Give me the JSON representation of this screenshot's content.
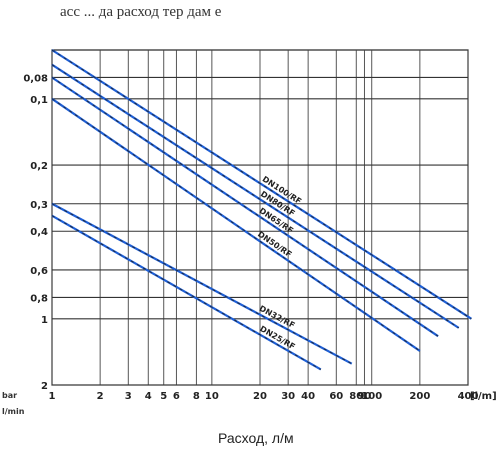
{
  "chart_data": {
    "type": "line",
    "title": "асс ... да расход   тер  дам е",
    "xlabel": "Расход,  л/м",
    "x_scale": "log",
    "y_scale": "log",
    "y_reversed": true,
    "x_ticks": [
      "1",
      "2",
      "3",
      "4",
      "5",
      "6",
      "8",
      "10",
      "20",
      "30",
      "40",
      "60",
      "80",
      "90",
      "100",
      "200",
      "400"
    ],
    "x_unit": "[l/m]",
    "y_ticks": [
      "0,08",
      "0,1",
      "0,2",
      "0,3",
      "0,4",
      "0,6",
      "0,8",
      "1",
      "2"
    ],
    "y_units": [
      "bar",
      "l/min"
    ],
    "xlim": [
      1,
      400
    ],
    "ylim": [
      0.06,
      2
    ],
    "grid": true,
    "series": [
      {
        "name": "DN100/RF",
        "x": [
          1,
          420
        ],
        "y": [
          0.06,
          1.0
        ]
      },
      {
        "name": "DN80/RF",
        "x": [
          1,
          350
        ],
        "y": [
          0.07,
          1.1
        ]
      },
      {
        "name": "DN65/RF",
        "x": [
          1,
          260
        ],
        "y": [
          0.08,
          1.2
        ]
      },
      {
        "name": "DN50/RF",
        "x": [
          1,
          200
        ],
        "y": [
          0.1,
          1.4
        ]
      },
      {
        "name": "DN32/RF",
        "x": [
          1,
          75
        ],
        "y": [
          0.3,
          1.6
        ]
      },
      {
        "name": "DN25/RF",
        "x": [
          1,
          48
        ],
        "y": [
          0.34,
          1.7
        ]
      }
    ]
  }
}
